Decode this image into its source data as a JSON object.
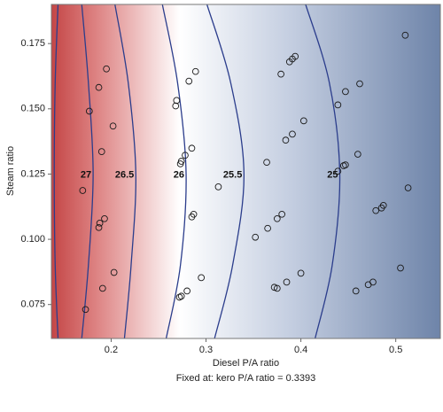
{
  "chart_data": {
    "type": "contour",
    "x_label": "Diesel P/A ratio",
    "subtitle": "Fixed at: kero P/A ratio = 0.3393",
    "y_label": "Steam ratio",
    "xlim": [
      0.137,
      0.547
    ],
    "ylim": [
      0.062,
      0.19
    ],
    "xticks": [
      0.2,
      0.3,
      0.4,
      0.5
    ],
    "yticks": [
      0.075,
      {
        "value": 0.1,
        "label": "0.100"
      },
      0.125,
      {
        "value": 0.15,
        "label": "0.150"
      },
      0.175
    ],
    "contours": [
      {
        "x": [
          0.144,
          0.141,
          0.14,
          0.141,
          0.144
        ],
        "y": [
          0.19,
          0.16,
          0.125,
          0.09,
          0.062
        ]
      },
      {
        "level": 27,
        "x": [
          0.169,
          0.176,
          0.181,
          0.176,
          0.169
        ],
        "y": [
          0.19,
          0.16,
          0.125,
          0.09,
          0.062
        ]
      },
      {
        "level": 26.5,
        "x": [
          0.204,
          0.218,
          0.226,
          0.221,
          0.214
        ],
        "y": [
          0.19,
          0.16,
          0.125,
          0.09,
          0.062
        ]
      },
      {
        "level": 26,
        "x": [
          0.254,
          0.27,
          0.279,
          0.273,
          0.258
        ],
        "y": [
          0.19,
          0.16,
          0.125,
          0.09,
          0.062
        ]
      },
      {
        "level": 25.5,
        "x": [
          0.301,
          0.326,
          0.34,
          0.328,
          0.309
        ],
        "y": [
          0.19,
          0.16,
          0.125,
          0.09,
          0.062
        ]
      },
      {
        "level": 25,
        "x": [
          0.405,
          0.43,
          0.441,
          0.433,
          0.415
        ],
        "y": [
          0.19,
          0.16,
          0.125,
          0.09,
          0.062
        ]
      }
    ],
    "points": {
      "x": [
        0.195,
        0.187,
        0.177,
        0.202,
        0.19,
        0.17,
        0.193,
        0.188,
        0.187,
        0.203,
        0.191,
        0.173,
        0.289,
        0.282,
        0.269,
        0.268,
        0.285,
        0.278,
        0.274,
        0.273,
        0.287,
        0.285,
        0.295,
        0.28,
        0.274,
        0.272,
        0.313,
        0.364,
        0.394,
        0.391,
        0.388,
        0.379,
        0.391,
        0.384,
        0.403,
        0.38,
        0.375,
        0.352,
        0.365,
        0.372,
        0.375,
        0.385,
        0.4,
        0.51,
        0.462,
        0.447,
        0.439,
        0.46,
        0.447,
        0.445,
        0.439,
        0.513,
        0.487,
        0.485,
        0.479,
        0.505,
        0.476,
        0.471,
        0.458
      ],
      "y": [
        0.1653,
        0.1582,
        0.1491,
        0.1434,
        0.1336,
        0.1187,
        0.1079,
        0.1062,
        0.1045,
        0.0873,
        0.0812,
        0.0731,
        0.1643,
        0.1606,
        0.1532,
        0.1511,
        0.1349,
        0.1322,
        0.1299,
        0.1289,
        0.1096,
        0.1086,
        0.0853,
        0.0802,
        0.0782,
        0.0778,
        0.1201,
        0.1295,
        0.1701,
        0.1691,
        0.168,
        0.1633,
        0.1403,
        0.138,
        0.1454,
        0.1096,
        0.1079,
        0.1008,
        0.1042,
        0.0816,
        0.0812,
        0.0836,
        0.087,
        0.1782,
        0.1596,
        0.1566,
        0.1515,
        0.1326,
        0.1285,
        0.1282,
        0.1261,
        0.1197,
        0.113,
        0.112,
        0.111,
        0.089,
        0.0836,
        0.0826,
        0.0802
      ]
    },
    "contour_color": "#2b3d8c",
    "point_color": "#1a1a1a"
  }
}
